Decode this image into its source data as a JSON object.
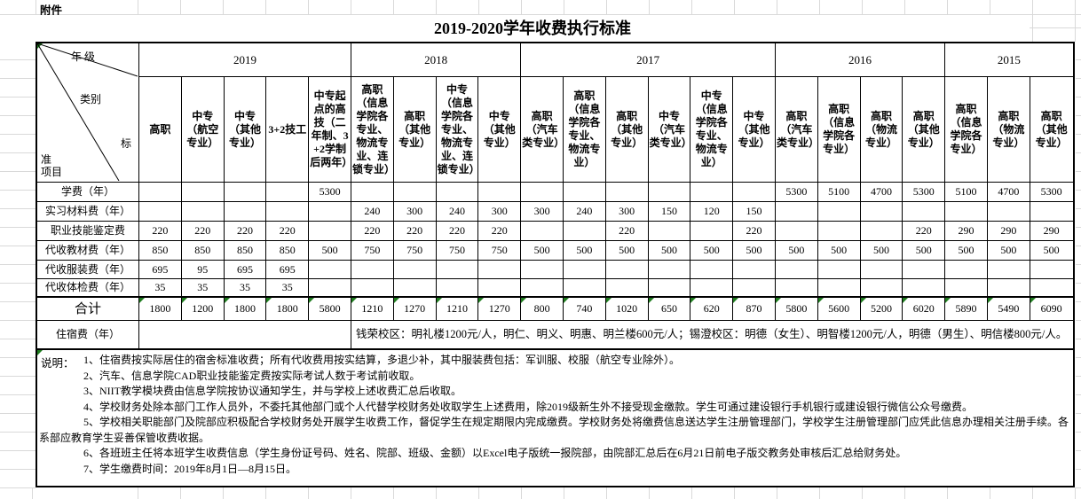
{
  "sheet": {
    "attachment_label": "附件",
    "title": "2019-2020学年收费执行标准"
  },
  "corner": {
    "year_label": "年 级",
    "category_label": "类别",
    "item_label_lines": [
      "标",
      "准",
      "项目"
    ]
  },
  "year_groups": [
    {
      "year": "2019",
      "cols": [
        "高职",
        "中专（航空专业）",
        "中专（其他专业）",
        "3+2技工",
        "中专起点的高技（二年制、3+2学制后两年）"
      ]
    },
    {
      "year": "2018",
      "cols": [
        "高职（信息学院各专业、物流专业、连锁专业）",
        "高职（其他专业）",
        "中专（信息学院各专业、物流专业、连锁专业）",
        "中专（其他专业）"
      ]
    },
    {
      "year": "2017",
      "cols": [
        "高职（汽车类专业）",
        "高职（信息学院各专业、物流专业）",
        "高职（其他专业）",
        "中专（汽车类专业）",
        "中专（信息学院各专业、物流专业）",
        "中专（其他专业）"
      ]
    },
    {
      "year": "2016",
      "cols": [
        "高职（汽车类专业）",
        "高职（信息学院各专业）",
        "高职（物流专业）",
        "高职（其他专业）"
      ]
    },
    {
      "year": "2015",
      "cols": [
        "高职（信息学院各专业）",
        "高职（物流专业）",
        "高职（其他专业）"
      ]
    }
  ],
  "fee_rows": [
    {
      "label": "学费（年）",
      "values": [
        "",
        "",
        "",
        "",
        "5300",
        "",
        "",
        "",
        "",
        "",
        "",
        "",
        "",
        "",
        "",
        "5300",
        "5100",
        "4700",
        "5300",
        "5100",
        "4700",
        "5300"
      ]
    },
    {
      "label": "实习材料费（年）",
      "values": [
        "",
        "",
        "",
        "",
        "",
        "240",
        "300",
        "240",
        "300",
        "300",
        "240",
        "300",
        "150",
        "120",
        "150",
        "",
        "",
        "",
        "",
        "",
        "",
        ""
      ]
    },
    {
      "label": "职业技能鉴定费",
      "values": [
        "220",
        "220",
        "220",
        "220",
        "",
        "220",
        "220",
        "220",
        "220",
        "",
        "",
        "220",
        "",
        "",
        "220",
        "",
        "",
        "",
        "220",
        "290",
        "290",
        "290"
      ]
    },
    {
      "label": "代收教材费（年）",
      "values": [
        "850",
        "850",
        "850",
        "850",
        "500",
        "750",
        "750",
        "750",
        "750",
        "500",
        "500",
        "500",
        "500",
        "500",
        "500",
        "500",
        "500",
        "500",
        "500",
        "500",
        "500",
        "500"
      ]
    },
    {
      "label": "代收服装费（年）",
      "values": [
        "695",
        "95",
        "695",
        "695",
        "",
        "",
        "",
        "",
        "",
        "",
        "",
        "",
        "",
        "",
        "",
        "",
        "",
        "",
        "",
        "",
        "",
        ""
      ]
    },
    {
      "label": "代收体检费（年）",
      "values": [
        "35",
        "35",
        "35",
        "35",
        "",
        "",
        "",
        "",
        "",
        "",
        "",
        "",
        "",
        "",
        "",
        "",
        "",
        "",
        "",
        "",
        "",
        ""
      ]
    }
  ],
  "total_row": {
    "label": "合计",
    "values": [
      "1800",
      "1200",
      "1800",
      "1800",
      "5800",
      "1210",
      "1270",
      "1210",
      "1270",
      "800",
      "740",
      "1020",
      "650",
      "620",
      "870",
      "5800",
      "5600",
      "5200",
      "6020",
      "5890",
      "5490",
      "6090"
    ]
  },
  "accommodation": {
    "label": "住宿费（年）",
    "text": "钱荣校区：明礼楼1200元/人，明仁、明义、明惠、明兰楼600元/人；锡澄校区：明德（女生）、明智楼1200元/人，明德（男生）、明信楼800元/人。"
  },
  "notes": {
    "label": "说明：",
    "items": [
      "1、住宿费按实际居住的宿舍标准收费；所有代收费用按实结算，多退少补，其中服装费包括：军训服、校服（航空专业除外）。",
      "2、汽车、信息学院CAD职业技能鉴定费按实际考试人数于考试前收取。",
      "3、NIIT教学模块费由信息学院按协议通知学生，并与学校上述收费汇总后收取。",
      "4、学校财务处除本部门工作人员外，不委托其他部门或个人代替学校财务处收取学生上述费用，除2019级新生外不接受现金缴款。学生可通过建设银行手机银行或建设银行微信公众号缴费。",
      "5、学校相关职能部门及院部应积极配合学校财务处开展学生收费工作，督促学生在规定期限内完成缴费。学校财务处将缴费信息送达学生注册管理部门，学校学生注册管理部门应凭此信息办理相关注册手续。各系部应教育学生妥善保管收费收据。",
      "6、各班班主任将本班学生收费信息（学生身份证号码、姓名、院部、班级、金额）以Excel电子版统一报院部，由院部汇总后在6月21日前电子版交教务处审核后汇总给财务处。",
      "7、学生缴费时间：2019年8月1日—8月15日。"
    ]
  },
  "colors": {
    "border": "#000000",
    "grid_line": "#d9d9d9",
    "indicator_green": "#1f7d1f",
    "background": "#ffffff"
  }
}
